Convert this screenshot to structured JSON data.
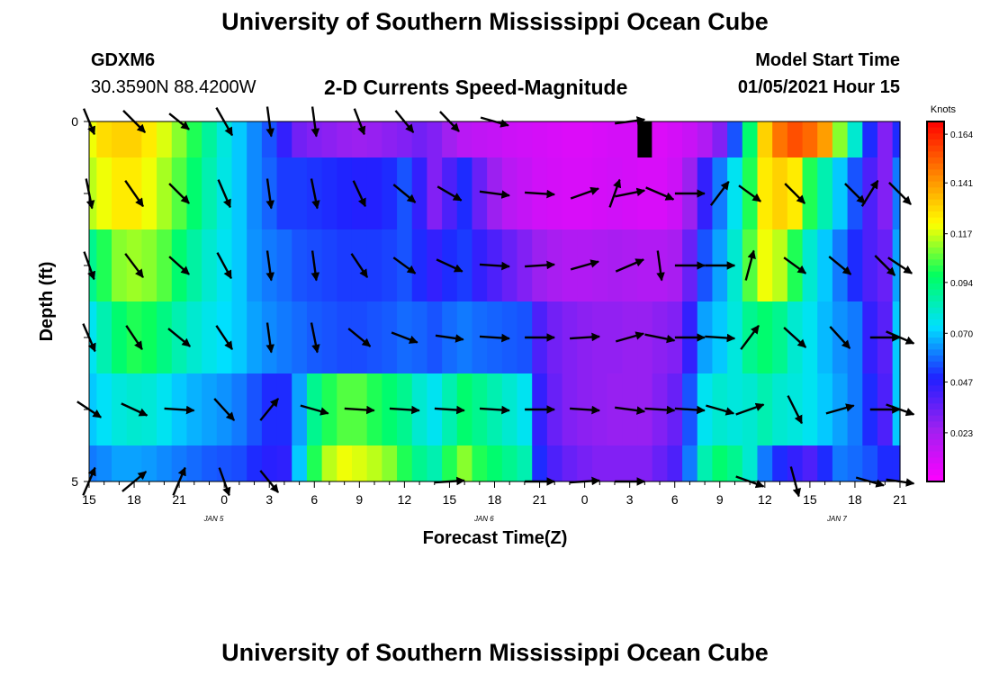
{
  "header": {
    "title": "University of Southern Mississippi Ocean Cube",
    "bottom_title": "University of Southern Mississippi Ocean Cube",
    "station_id": "GDXM6",
    "station_coords": "30.3590N 88.4200W",
    "subtitle": "2-D Currents Speed-Magnitude",
    "model_start_label": "Model Start Time",
    "model_start_value": "01/05/2021 Hour 15"
  },
  "chart_data": {
    "type": "heatmap",
    "title": "2-D Currents Speed-Magnitude",
    "xlabel": "Forecast Time(Z)",
    "ylabel": "Depth (ft)",
    "ylim": [
      0,
      5
    ],
    "y_tick_labels": [
      "0",
      "5"
    ],
    "x_tick_labels": [
      "15",
      "18",
      "21",
      "0",
      "3",
      "6",
      "9",
      "12",
      "15",
      "18",
      "21",
      "0",
      "3",
      "6",
      "9",
      "12",
      "15",
      "18",
      "21"
    ],
    "date_labels": [
      "JAN 5",
      "JAN 6",
      "JAN 7"
    ],
    "colorbar": {
      "unit": "Knots",
      "tick_labels": [
        "0.164",
        "0.141",
        "0.117",
        "0.094",
        "0.070",
        "0.047",
        "0.023"
      ],
      "colors": [
        "#ff00ff",
        "#a020f0",
        "#2020ff",
        "#00e0ff",
        "#00ff60",
        "#ffff00",
        "#ff8000",
        "#ff0000"
      ]
    },
    "hours": [
      0,
      1,
      2,
      3,
      4,
      5,
      6,
      7,
      8,
      9,
      10,
      11,
      12,
      13,
      14,
      15,
      16,
      17,
      18,
      19,
      20,
      21,
      22,
      23,
      24,
      25,
      26,
      27,
      28,
      29,
      30,
      31,
      32,
      33,
      34,
      35,
      36,
      37,
      38,
      39,
      40,
      41,
      42,
      43,
      44,
      45,
      46,
      47,
      48,
      49,
      50,
      51,
      52,
      53,
      54
    ],
    "depth_rows": [
      {
        "depth_range": [
          0,
          0.5
        ],
        "speed": [
          0.12,
          0.128,
          0.13,
          0.13,
          0.125,
          0.118,
          0.11,
          0.1,
          0.088,
          0.078,
          0.07,
          0.062,
          0.055,
          0.045,
          0.033,
          0.03,
          0.028,
          0.026,
          0.025,
          0.026,
          0.028,
          0.03,
          0.033,
          0.03,
          0.024,
          0.018,
          0.016,
          0.015,
          0.013,
          0.012,
          0.011,
          0.01,
          0.009,
          0.009,
          0.01,
          0.011,
          0.011,
          0.01,
          0.009,
          0.011,
          0.014,
          0.02,
          0.03,
          0.055,
          0.095,
          0.13,
          0.148,
          0.155,
          0.15,
          0.14,
          0.11,
          0.08,
          0.05,
          0.03,
          0.05
        ]
      },
      {
        "depth_range": [
          0.5,
          1.5
        ],
        "speed": [
          0.115,
          0.12,
          0.125,
          0.125,
          0.12,
          0.113,
          0.105,
          0.095,
          0.085,
          0.077,
          0.07,
          0.062,
          0.057,
          0.052,
          0.052,
          0.051,
          0.05,
          0.049,
          0.048,
          0.048,
          0.05,
          0.055,
          0.045,
          0.03,
          0.04,
          0.05,
          0.035,
          0.025,
          0.018,
          0.015,
          0.012,
          0.011,
          0.01,
          0.01,
          0.011,
          0.012,
          0.011,
          0.01,
          0.01,
          0.013,
          0.025,
          0.045,
          0.06,
          0.075,
          0.1,
          0.125,
          0.13,
          0.125,
          0.1,
          0.085,
          0.07,
          0.055,
          0.04,
          0.03,
          0.06
        ]
      },
      {
        "depth_range": [
          1.5,
          2.5
        ],
        "speed": [
          0.09,
          0.1,
          0.11,
          0.112,
          0.11,
          0.105,
          0.095,
          0.087,
          0.08,
          0.075,
          0.07,
          0.063,
          0.06,
          0.058,
          0.055,
          0.054,
          0.053,
          0.052,
          0.052,
          0.052,
          0.053,
          0.055,
          0.05,
          0.045,
          0.05,
          0.052,
          0.045,
          0.04,
          0.035,
          0.03,
          0.025,
          0.022,
          0.02,
          0.02,
          0.021,
          0.022,
          0.021,
          0.02,
          0.02,
          0.022,
          0.035,
          0.055,
          0.065,
          0.08,
          0.105,
          0.12,
          0.115,
          0.1,
          0.08,
          0.07,
          0.06,
          0.05,
          0.04,
          0.035,
          0.065
        ]
      },
      {
        "depth_range": [
          2.5,
          3.5
        ],
        "speed": [
          0.075,
          0.085,
          0.095,
          0.1,
          0.098,
          0.092,
          0.085,
          0.08,
          0.076,
          0.073,
          0.07,
          0.065,
          0.062,
          0.06,
          0.058,
          0.056,
          0.055,
          0.054,
          0.054,
          0.055,
          0.056,
          0.058,
          0.057,
          0.055,
          0.058,
          0.06,
          0.058,
          0.057,
          0.056,
          0.055,
          0.04,
          0.033,
          0.03,
          0.028,
          0.027,
          0.027,
          0.026,
          0.026,
          0.028,
          0.03,
          0.045,
          0.065,
          0.07,
          0.078,
          0.09,
          0.095,
          0.09,
          0.08,
          0.075,
          0.068,
          0.063,
          0.06,
          0.045,
          0.038,
          0.07
        ]
      },
      {
        "depth_range": [
          3.5,
          4.5
        ],
        "speed": [
          0.07,
          0.074,
          0.078,
          0.08,
          0.079,
          0.075,
          0.07,
          0.067,
          0.065,
          0.063,
          0.06,
          0.055,
          0.05,
          0.05,
          0.065,
          0.09,
          0.1,
          0.105,
          0.105,
          0.1,
          0.095,
          0.09,
          0.08,
          0.075,
          0.085,
          0.095,
          0.09,
          0.085,
          0.08,
          0.075,
          0.045,
          0.035,
          0.03,
          0.028,
          0.027,
          0.026,
          0.026,
          0.026,
          0.03,
          0.035,
          0.055,
          0.075,
          0.08,
          0.078,
          0.08,
          0.085,
          0.08,
          0.078,
          0.075,
          0.07,
          0.065,
          0.06,
          0.05,
          0.04,
          0.07
        ]
      },
      {
        "depth_range": [
          4.5,
          5
        ],
        "speed": [
          0.06,
          0.062,
          0.065,
          0.065,
          0.064,
          0.062,
          0.06,
          0.058,
          0.056,
          0.055,
          0.054,
          0.05,
          0.047,
          0.046,
          0.07,
          0.1,
          0.115,
          0.12,
          0.118,
          0.115,
          0.11,
          0.1,
          0.09,
          0.085,
          0.1,
          0.11,
          0.1,
          0.095,
          0.09,
          0.085,
          0.05,
          0.04,
          0.035,
          0.032,
          0.03,
          0.03,
          0.03,
          0.03,
          0.035,
          0.04,
          0.06,
          0.085,
          0.095,
          0.09,
          0.08,
          0.06,
          0.05,
          0.045,
          0.04,
          0.05,
          0.06,
          0.058,
          0.055,
          0.05,
          0.05
        ]
      }
    ],
    "no_data": [
      {
        "hour": 37,
        "depth_range": [
          0,
          0.5
        ]
      }
    ],
    "vectors": [
      {
        "depth": 0,
        "items": [
          [
            0,
            -27,
            -65
          ],
          [
            3,
            -55,
            -55
          ],
          [
            6,
            -50,
            -40
          ],
          [
            9,
            -40,
            -70
          ],
          [
            12,
            -10,
            -75
          ],
          [
            15,
            -10,
            -75
          ],
          [
            18,
            -25,
            -65
          ],
          [
            21,
            -45,
            -55
          ],
          [
            24,
            -48,
            -50
          ],
          [
            27,
            -70,
            -20
          ],
          [
            36,
            -75,
            10
          ]
        ]
      },
      {
        "depth": 1,
        "items": [
          [
            0,
            -15,
            -75
          ],
          [
            3,
            -45,
            -65
          ],
          [
            6,
            -50,
            -50
          ],
          [
            9,
            -30,
            -70
          ],
          [
            12,
            -10,
            -75
          ],
          [
            15,
            -15,
            -75
          ],
          [
            18,
            -30,
            -65
          ],
          [
            21,
            -55,
            -45
          ],
          [
            24,
            -60,
            -35
          ],
          [
            27,
            -75,
            -10
          ],
          [
            30,
            -75,
            -5
          ],
          [
            33,
            -70,
            25
          ],
          [
            35,
            -25,
            70
          ],
          [
            36,
            -75,
            15
          ],
          [
            38,
            -70,
            -30
          ],
          [
            40,
            -75,
            0
          ],
          [
            42,
            -45,
            60
          ],
          [
            44,
            -55,
            -40
          ],
          [
            47,
            -50,
            -50
          ],
          [
            51,
            -50,
            -50
          ],
          [
            52,
            -40,
            65
          ],
          [
            54,
            -55,
            -55
          ]
        ]
      },
      {
        "depth": 2,
        "items": [
          [
            0,
            -25,
            -70
          ],
          [
            3,
            -45,
            -60
          ],
          [
            6,
            -50,
            -45
          ],
          [
            9,
            -35,
            -65
          ],
          [
            12,
            -10,
            -75
          ],
          [
            15,
            -10,
            -75
          ],
          [
            18,
            -40,
            -60
          ],
          [
            21,
            -55,
            -40
          ],
          [
            24,
            -65,
            -30
          ],
          [
            27,
            -75,
            -5
          ],
          [
            30,
            -75,
            5
          ],
          [
            33,
            -70,
            20
          ],
          [
            36,
            -70,
            30
          ],
          [
            38,
            -10,
            -75
          ],
          [
            40,
            -75,
            0
          ],
          [
            42,
            -75,
            0
          ],
          [
            44,
            -20,
            75
          ],
          [
            47,
            -55,
            -40
          ],
          [
            50,
            -55,
            -45
          ],
          [
            53,
            -50,
            -50
          ],
          [
            54,
            -60,
            -40
          ]
        ]
      },
      {
        "depth": 3,
        "items": [
          [
            0,
            -30,
            -70
          ],
          [
            3,
            -40,
            -60
          ],
          [
            6,
            -55,
            -45
          ],
          [
            9,
            -40,
            -60
          ],
          [
            12,
            -10,
            -75
          ],
          [
            15,
            -15,
            -75
          ],
          [
            18,
            -55,
            -45
          ],
          [
            21,
            -65,
            -25
          ],
          [
            24,
            -70,
            -10
          ],
          [
            27,
            -75,
            -5
          ],
          [
            30,
            -75,
            0
          ],
          [
            33,
            -75,
            5
          ],
          [
            36,
            -70,
            20
          ],
          [
            38,
            -75,
            -15
          ],
          [
            40,
            -75,
            0
          ],
          [
            42,
            -75,
            -5
          ],
          [
            44,
            -45,
            60
          ],
          [
            47,
            -55,
            -50
          ],
          [
            50,
            -50,
            -55
          ],
          [
            53,
            -75,
            0
          ],
          [
            54,
            -70,
            -30
          ]
        ]
      },
      {
        "depth": 4,
        "items": [
          [
            0,
            -60,
            -40
          ],
          [
            3,
            -65,
            -30
          ],
          [
            6,
            -75,
            -5
          ],
          [
            9,
            -50,
            -55
          ],
          [
            12,
            -45,
            55
          ],
          [
            15,
            -70,
            -20
          ],
          [
            18,
            -75,
            -5
          ],
          [
            21,
            -75,
            -5
          ],
          [
            24,
            -75,
            -5
          ],
          [
            27,
            -75,
            -5
          ],
          [
            30,
            -75,
            0
          ],
          [
            33,
            -75,
            -5
          ],
          [
            36,
            -75,
            -10
          ],
          [
            38,
            -75,
            -5
          ],
          [
            40,
            -75,
            -5
          ],
          [
            42,
            -70,
            -20
          ],
          [
            44,
            -70,
            25
          ],
          [
            47,
            -35,
            -70
          ],
          [
            50,
            -70,
            20
          ],
          [
            53,
            -75,
            0
          ],
          [
            54,
            -70,
            -25
          ]
        ]
      },
      {
        "depth": 5,
        "items": [
          [
            0,
            -30,
            70
          ],
          [
            3,
            -60,
            50
          ],
          [
            6,
            -30,
            70
          ],
          [
            9,
            -25,
            -70
          ],
          [
            12,
            -45,
            -55
          ],
          [
            24,
            -75,
            5
          ],
          [
            30,
            -75,
            0
          ],
          [
            33,
            -75,
            5
          ],
          [
            36,
            -75,
            0
          ],
          [
            44,
            -70,
            -25
          ],
          [
            47,
            -20,
            -75
          ],
          [
            52,
            -70,
            -20
          ],
          [
            54,
            -70,
            -10
          ]
        ]
      }
    ]
  }
}
